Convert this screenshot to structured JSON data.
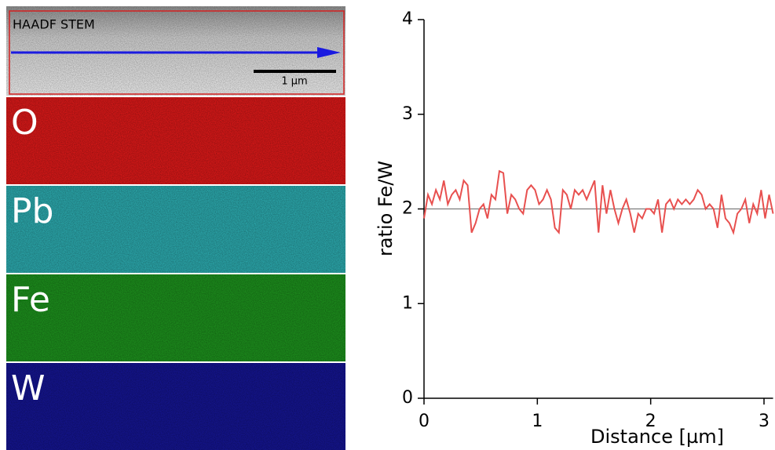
{
  "images": {
    "haadf_label": "HAADF STEM",
    "scale_bar": "1 µm",
    "maps": [
      {
        "label": "O",
        "color": "#d21818"
      },
      {
        "label": "Pb",
        "color": "#2aa2a6"
      },
      {
        "label": "Fe",
        "color": "#1c8a1c"
      },
      {
        "label": "W",
        "color": "#14148a"
      }
    ]
  },
  "chart_data": {
    "type": "line",
    "y_label": "ratio Fe/W",
    "x_label": "Distance [µm]",
    "x": [
      0,
      0.035,
      0.07,
      0.105,
      0.14,
      0.175,
      0.21,
      0.245,
      0.28,
      0.315,
      0.35,
      0.385,
      0.42,
      0.455,
      0.49,
      0.525,
      0.56,
      0.595,
      0.63,
      0.665,
      0.7,
      0.735,
      0.77,
      0.805,
      0.84,
      0.875,
      0.91,
      0.945,
      0.98,
      1.015,
      1.05,
      1.085,
      1.12,
      1.155,
      1.19,
      1.225,
      1.26,
      1.295,
      1.33,
      1.365,
      1.4,
      1.435,
      1.47,
      1.505,
      1.54,
      1.575,
      1.61,
      1.645,
      1.68,
      1.715,
      1.75,
      1.785,
      1.82,
      1.855,
      1.89,
      1.925,
      1.96,
      1.995,
      2.03,
      2.065,
      2.1,
      2.135,
      2.17,
      2.205,
      2.24,
      2.275,
      2.31,
      2.345,
      2.38,
      2.415,
      2.45,
      2.485,
      2.52,
      2.555,
      2.59,
      2.625,
      2.66,
      2.695,
      2.73,
      2.765,
      2.8,
      2.835,
      2.87,
      2.905,
      2.94,
      2.975,
      3.01,
      3.045,
      3.08
    ],
    "series": [
      {
        "color": "#e8504f",
        "values": [
          1.9,
          2.15,
          2.05,
          2.2,
          2.1,
          2.3,
          2.05,
          2.15,
          2.2,
          2.1,
          2.3,
          2.25,
          1.75,
          1.85,
          2.0,
          2.05,
          1.9,
          2.15,
          2.1,
          2.4,
          2.38,
          1.95,
          2.15,
          2.1,
          2.0,
          1.95,
          2.2,
          2.25,
          2.2,
          2.05,
          2.1,
          2.2,
          2.1,
          1.8,
          1.75,
          2.2,
          2.15,
          2.0,
          2.2,
          2.15,
          2.2,
          2.1,
          2.2,
          2.3,
          1.75,
          2.25,
          1.95,
          2.2,
          2.0,
          1.85,
          2.0,
          2.1,
          1.95,
          1.75,
          1.95,
          1.9,
          2.0,
          2.0,
          1.95,
          2.1,
          1.75,
          2.05,
          2.1,
          2.0,
          2.1,
          2.05,
          2.1,
          2.05,
          2.1,
          2.2,
          2.15,
          2.0,
          2.05,
          2.0,
          1.8,
          2.15,
          1.9,
          1.85,
          1.75,
          1.95,
          2.0,
          2.1,
          1.85,
          2.05,
          1.95,
          2.2,
          1.9,
          2.15,
          1.95
        ]
      }
    ],
    "reference_line": 2,
    "xlim": [
      0,
      3.08
    ],
    "ylim": [
      0,
      4
    ],
    "xticks": [
      0,
      1,
      2,
      3
    ],
    "yticks": [
      0,
      1,
      2,
      3,
      4
    ]
  }
}
